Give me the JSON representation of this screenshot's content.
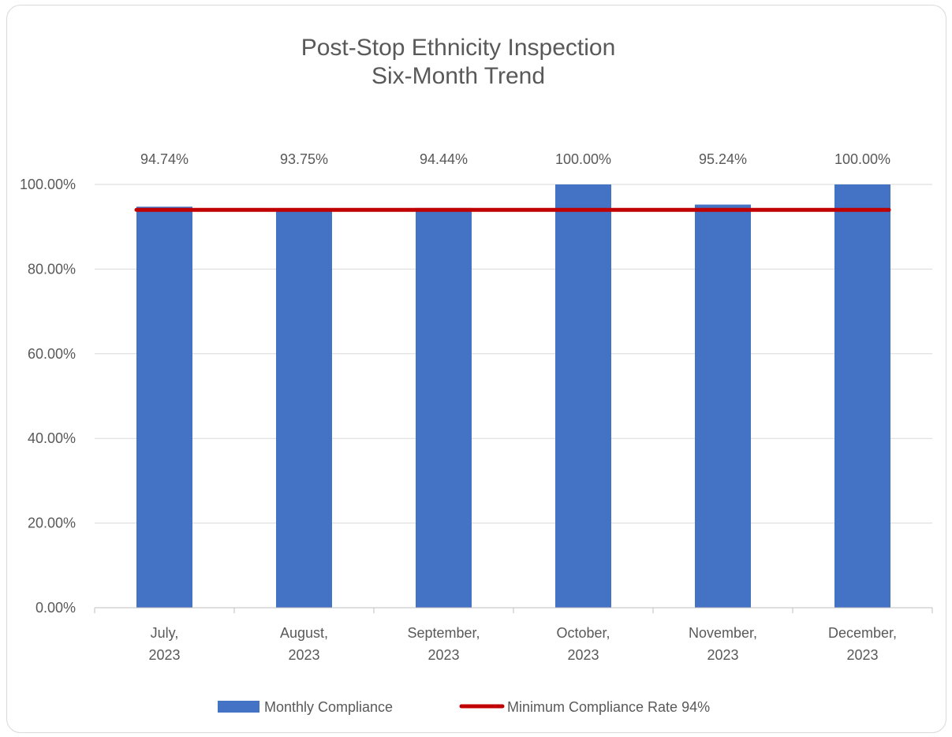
{
  "chart_data": {
    "type": "bar",
    "title_lines": [
      "Post-Stop Ethnicity Inspection",
      "Six-Month Trend"
    ],
    "categories": [
      [
        "July,",
        "2023"
      ],
      [
        "August,",
        "2023"
      ],
      [
        "September,",
        "2023"
      ],
      [
        "October,",
        "2023"
      ],
      [
        "November,",
        "2023"
      ],
      [
        "December,",
        "2023"
      ]
    ],
    "series": [
      {
        "name": "Monthly Compliance",
        "kind": "bar",
        "color": "#4472C4",
        "values": [
          94.74,
          93.75,
          94.44,
          100.0,
          95.24,
          100.0
        ],
        "labels": [
          "94.74%",
          "93.75%",
          "94.44%",
          "100.00%",
          "95.24%",
          "100.00%"
        ]
      },
      {
        "name": "Minimum Compliance Rate 94%",
        "kind": "line",
        "color": "#C00000",
        "values": [
          94,
          94,
          94,
          94,
          94,
          94
        ]
      }
    ],
    "ylim": [
      0,
      100
    ],
    "yticks": [
      0,
      20,
      40,
      60,
      80,
      100
    ],
    "ytick_labels": [
      "0.00%",
      "20.00%",
      "40.00%",
      "60.00%",
      "80.00%",
      "100.00%"
    ],
    "grid": true,
    "legend_position": "bottom"
  }
}
